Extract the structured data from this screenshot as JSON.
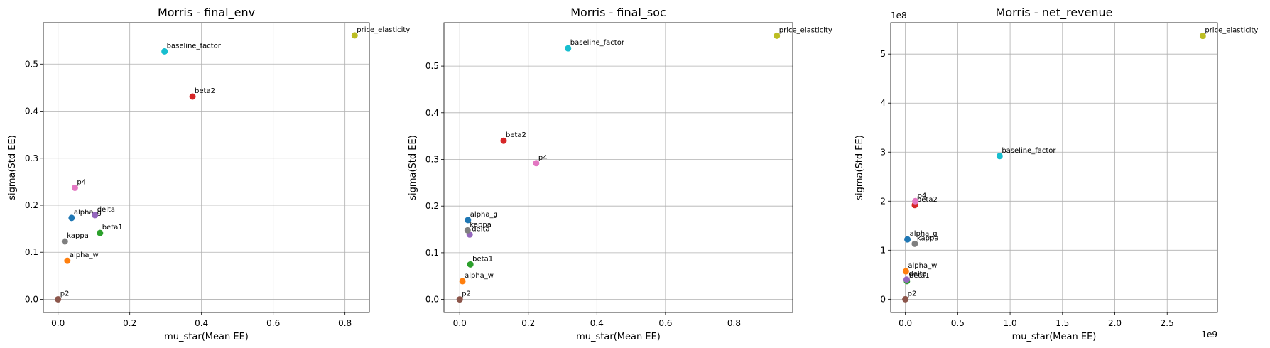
{
  "chart_data": [
    {
      "type": "scatter",
      "title": "Morris - final_env",
      "xlabel": "mu_star(Mean EE)",
      "ylabel": "sigma(Std EE)",
      "xlim": [
        -0.041,
        0.868
      ],
      "ylim": [
        -0.028,
        0.588
      ],
      "xticks": [
        0.0,
        0.2,
        0.4,
        0.6,
        0.8
      ],
      "xtick_labels": [
        "0.0",
        "0.2",
        "0.4",
        "0.6",
        "0.8"
      ],
      "yticks": [
        0.0,
        0.1,
        0.2,
        0.3,
        0.4,
        0.5
      ],
      "ytick_labels": [
        "0.0",
        "0.1",
        "0.2",
        "0.3",
        "0.4",
        "0.5"
      ],
      "x_offset_label": "",
      "y_offset_label": "",
      "grid": true,
      "points": [
        {
          "label": "alpha_g",
          "x": 0.038,
          "y": 0.173,
          "color": "#1f77b4"
        },
        {
          "label": "alpha_w",
          "x": 0.026,
          "y": 0.082,
          "color": "#ff7f0e"
        },
        {
          "label": "beta1",
          "x": 0.117,
          "y": 0.141,
          "color": "#2ca02c"
        },
        {
          "label": "beta2",
          "x": 0.375,
          "y": 0.431,
          "color": "#d62728"
        },
        {
          "label": "delta",
          "x": 0.103,
          "y": 0.179,
          "color": "#9467bd"
        },
        {
          "label": "p2",
          "x": 0.0,
          "y": 0.0,
          "color": "#8c564b"
        },
        {
          "label": "p4",
          "x": 0.047,
          "y": 0.237,
          "color": "#e377c2"
        },
        {
          "label": "kappa",
          "x": 0.019,
          "y": 0.123,
          "color": "#7f7f7f"
        },
        {
          "label": "price_elasticity",
          "x": 0.827,
          "y": 0.561,
          "color": "#bcbd22"
        },
        {
          "label": "baseline_factor",
          "x": 0.297,
          "y": 0.527,
          "color": "#17becf"
        }
      ]
    },
    {
      "type": "scatter",
      "title": "Morris - final_soc",
      "xlabel": "mu_star(Mean EE)",
      "ylabel": "sigma(Std EE)",
      "xlim": [
        -0.046,
        0.971
      ],
      "ylim": [
        -0.028,
        0.593
      ],
      "xticks": [
        0.0,
        0.2,
        0.4,
        0.6,
        0.8
      ],
      "xtick_labels": [
        "0.0",
        "0.2",
        "0.4",
        "0.6",
        "0.8"
      ],
      "yticks": [
        0.0,
        0.1,
        0.2,
        0.3,
        0.4,
        0.5
      ],
      "ytick_labels": [
        "0.0",
        "0.1",
        "0.2",
        "0.3",
        "0.4",
        "0.5"
      ],
      "x_offset_label": "",
      "y_offset_label": "",
      "grid": true,
      "points": [
        {
          "label": "alpha_g",
          "x": 0.024,
          "y": 0.17,
          "color": "#1f77b4"
        },
        {
          "label": "alpha_w",
          "x": 0.008,
          "y": 0.039,
          "color": "#ff7f0e"
        },
        {
          "label": "beta1",
          "x": 0.031,
          "y": 0.075,
          "color": "#2ca02c"
        },
        {
          "label": "beta2",
          "x": 0.128,
          "y": 0.34,
          "color": "#d62728"
        },
        {
          "label": "delta",
          "x": 0.029,
          "y": 0.139,
          "color": "#9467bd"
        },
        {
          "label": "p2",
          "x": 0.0,
          "y": 0.0,
          "color": "#8c564b"
        },
        {
          "label": "p4",
          "x": 0.223,
          "y": 0.292,
          "color": "#e377c2"
        },
        {
          "label": "kappa",
          "x": 0.023,
          "y": 0.148,
          "color": "#7f7f7f"
        },
        {
          "label": "price_elasticity",
          "x": 0.925,
          "y": 0.565,
          "color": "#bcbd22"
        },
        {
          "label": "baseline_factor",
          "x": 0.316,
          "y": 0.538,
          "color": "#17becf"
        }
      ]
    },
    {
      "type": "scatter",
      "title": "Morris - net_revenue",
      "xlabel": "mu_star(Mean EE)",
      "ylabel": "sigma(Std EE)",
      "xlim": [
        -0.14,
        2.98
      ],
      "ylim": [
        -0.27,
        5.64
      ],
      "xticks": [
        0.0,
        0.5,
        1.0,
        1.5,
        2.0,
        2.5
      ],
      "xtick_labels": [
        "0.0",
        "0.5",
        "1.0",
        "1.5",
        "2.0",
        "2.5"
      ],
      "yticks": [
        0,
        1,
        2,
        3,
        4,
        5
      ],
      "ytick_labels": [
        "0",
        "1",
        "2",
        "3",
        "4",
        "5"
      ],
      "x_offset_label": "1e9",
      "y_offset_label": "1e8",
      "grid": true,
      "points": [
        {
          "label": "alpha_g",
          "x": 0.02,
          "y": 1.22,
          "color": "#1f77b4"
        },
        {
          "label": "alpha_w",
          "x": 0.005,
          "y": 0.57,
          "color": "#ff7f0e"
        },
        {
          "label": "beta1",
          "x": 0.015,
          "y": 0.37,
          "color": "#2ca02c"
        },
        {
          "label": "beta2",
          "x": 0.09,
          "y": 1.92,
          "color": "#d62728"
        },
        {
          "label": "delta",
          "x": 0.012,
          "y": 0.4,
          "color": "#9467bd"
        },
        {
          "label": "p2",
          "x": 0.0,
          "y": 0.0,
          "color": "#8c564b"
        },
        {
          "label": "p4",
          "x": 0.095,
          "y": 2.0,
          "color": "#e377c2"
        },
        {
          "label": "kappa",
          "x": 0.09,
          "y": 1.13,
          "color": "#7f7f7f"
        },
        {
          "label": "price_elasticity",
          "x": 2.84,
          "y": 5.37,
          "color": "#bcbd22"
        },
        {
          "label": "baseline_factor",
          "x": 0.9,
          "y": 2.92,
          "color": "#17becf"
        }
      ]
    }
  ]
}
